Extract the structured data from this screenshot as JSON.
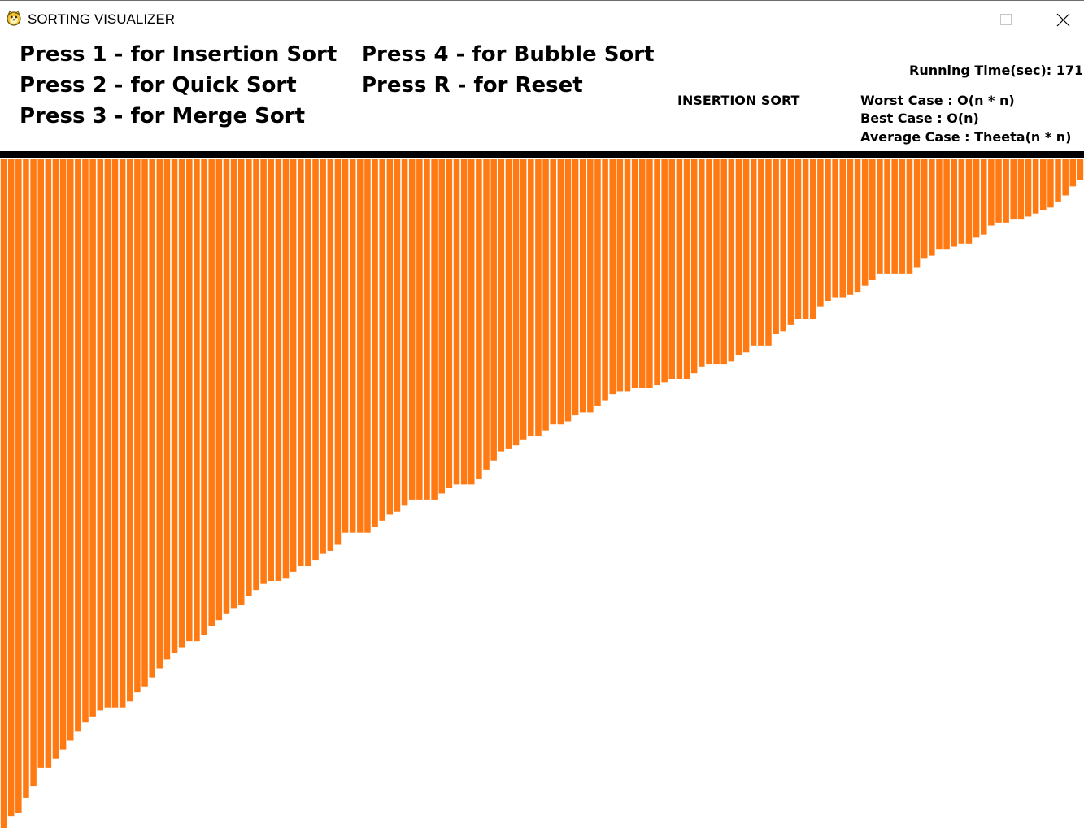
{
  "window": {
    "title": "SORTING VISUALIZER",
    "icon": "python-icon"
  },
  "controls": {
    "minimize_icon": "minimize-icon",
    "maximize_icon": "maximize-icon",
    "close_icon": "close-icon"
  },
  "menu": {
    "insertion": "Press 1 - for Insertion Sort",
    "quick": "Press 2 - for Quick Sort",
    "merge": "Press 3 - for Merge Sort",
    "bubble": "Press 4 - for Bubble Sort",
    "reset": "Press R - for Reset"
  },
  "info": {
    "algorithm_name": "INSERTION SORT",
    "running_time": "Running Time(sec): 171",
    "worst_case": "Worst Case : O(n * n)",
    "best_case": "Best Case : O(n)",
    "average_case": "Average Case : Theeta(n * n)"
  },
  "colors": {
    "bar": "#ff7a12",
    "divider": "#000000",
    "background": "#ffffff"
  },
  "bars": {
    "count": 146,
    "values": [
      222,
      218,
      217,
      212,
      208,
      202,
      202,
      199,
      196,
      193,
      190,
      187,
      185,
      183,
      182,
      182,
      182,
      180,
      177,
      175,
      172,
      169,
      166,
      164,
      162,
      160,
      160,
      158,
      155,
      153,
      151,
      149,
      148,
      145,
      143,
      141,
      140,
      140,
      139,
      137,
      135,
      135,
      133,
      131,
      130,
      128,
      124,
      124,
      124,
      124,
      122,
      120,
      118,
      117,
      115,
      113,
      113,
      113,
      113,
      111,
      109,
      108,
      108,
      108,
      106,
      103,
      100,
      97,
      96,
      95,
      93,
      92,
      92,
      90,
      88,
      88,
      87,
      85,
      84,
      84,
      82,
      80,
      78,
      77,
      77,
      76,
      76,
      76,
      75,
      74,
      73,
      73,
      73,
      71,
      69,
      68,
      68,
      68,
      67,
      65,
      64,
      62,
      62,
      62,
      58,
      57,
      55,
      53,
      53,
      53,
      49,
      47,
      46,
      46,
      45,
      44,
      42,
      40,
      38,
      38,
      38,
      38,
      38,
      36,
      33,
      32,
      30,
      30,
      29,
      28,
      28,
      26,
      25,
      22,
      21,
      21,
      20,
      20,
      19,
      18,
      17,
      16,
      14,
      12,
      9,
      7
    ]
  }
}
